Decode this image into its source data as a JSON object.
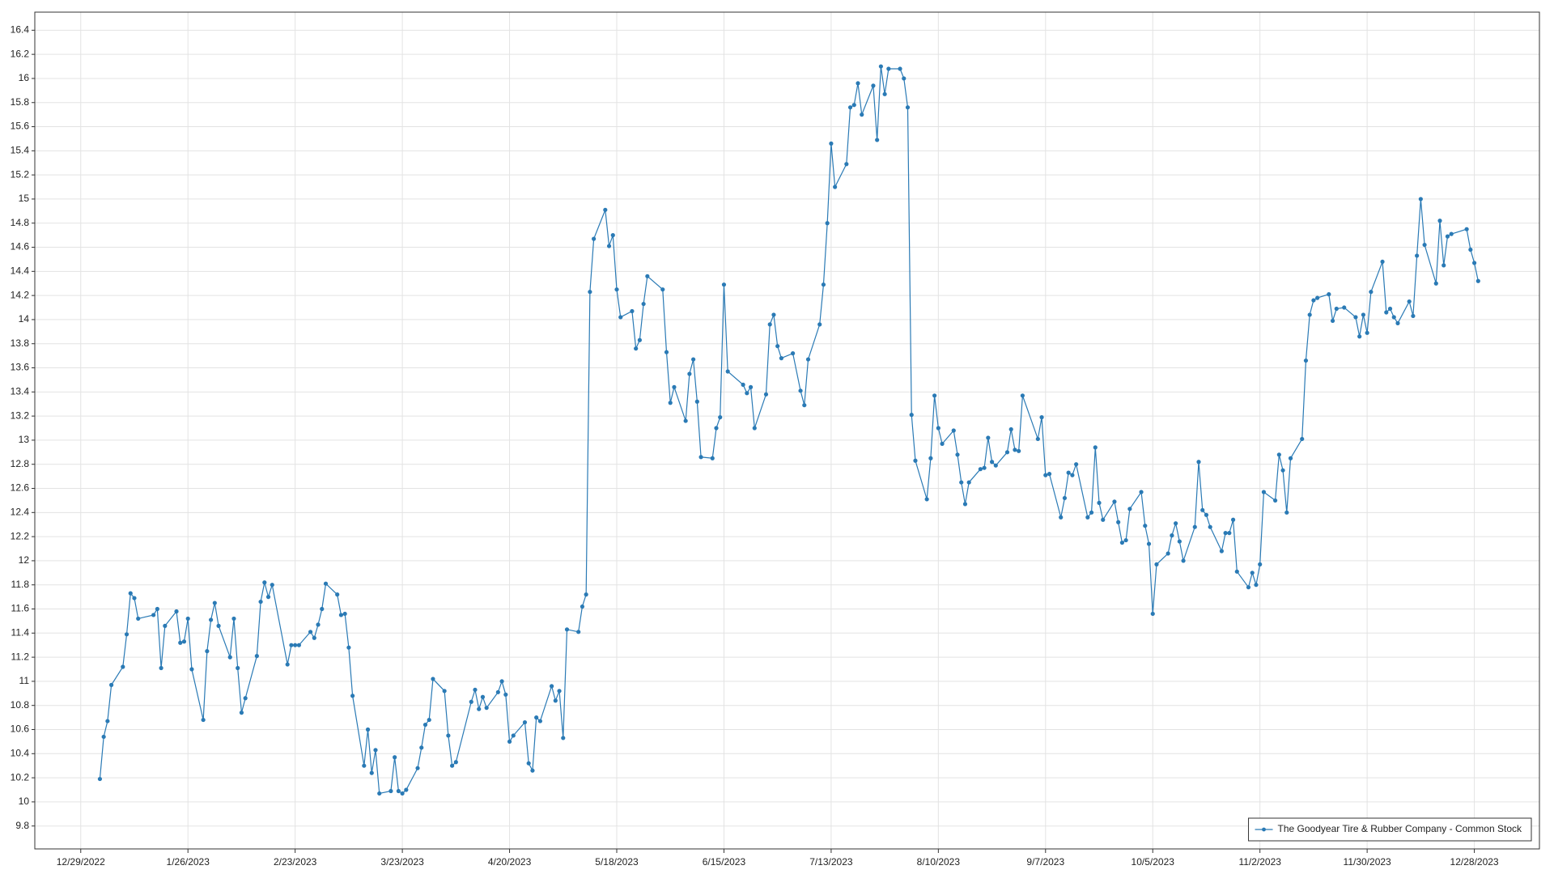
{
  "chart_data": {
    "type": "line",
    "x": [
      "1/3/2023",
      "1/4/2023",
      "1/5/2023",
      "1/6/2023",
      "1/9/2023",
      "1/10/2023",
      "1/11/2023",
      "1/12/2023",
      "1/13/2023",
      "1/17/2023",
      "1/18/2023",
      "1/19/2023",
      "1/20/2023",
      "1/23/2023",
      "1/24/2023",
      "1/25/2023",
      "1/26/2023",
      "1/27/2023",
      "1/30/2023",
      "1/31/2023",
      "2/1/2023",
      "2/2/2023",
      "2/3/2023",
      "2/6/2023",
      "2/7/2023",
      "2/8/2023",
      "2/9/2023",
      "2/10/2023",
      "2/13/2023",
      "2/14/2023",
      "2/15/2023",
      "2/16/2023",
      "2/17/2023",
      "2/21/2023",
      "2/22/2023",
      "2/23/2023",
      "2/24/2023",
      "2/27/2023",
      "2/28/2023",
      "3/1/2023",
      "3/2/2023",
      "3/3/2023",
      "3/6/2023",
      "3/7/2023",
      "3/8/2023",
      "3/9/2023",
      "3/10/2023",
      "3/13/2023",
      "3/14/2023",
      "3/15/2023",
      "3/16/2023",
      "3/17/2023",
      "3/20/2023",
      "3/21/2023",
      "3/22/2023",
      "3/23/2023",
      "3/24/2023",
      "3/27/2023",
      "3/28/2023",
      "3/29/2023",
      "3/30/2023",
      "3/31/2023",
      "4/3/2023",
      "4/4/2023",
      "4/5/2023",
      "4/6/2023",
      "4/10/2023",
      "4/11/2023",
      "4/12/2023",
      "4/13/2023",
      "4/14/2023",
      "4/17/2023",
      "4/18/2023",
      "4/19/2023",
      "4/20/2023",
      "4/21/2023",
      "4/24/2023",
      "4/25/2023",
      "4/26/2023",
      "4/27/2023",
      "4/28/2023",
      "5/1/2023",
      "5/2/2023",
      "5/3/2023",
      "5/4/2023",
      "5/5/2023",
      "5/8/2023",
      "5/9/2023",
      "5/10/2023",
      "5/11/2023",
      "5/12/2023",
      "5/15/2023",
      "5/16/2023",
      "5/17/2023",
      "5/18/2023",
      "5/19/2023",
      "5/22/2023",
      "5/23/2023",
      "5/24/2023",
      "5/25/2023",
      "5/26/2023",
      "5/30/2023",
      "5/31/2023",
      "6/1/2023",
      "6/2/2023",
      "6/5/2023",
      "6/6/2023",
      "6/7/2023",
      "6/8/2023",
      "6/9/2023",
      "6/12/2023",
      "6/13/2023",
      "6/14/2023",
      "6/15/2023",
      "6/16/2023",
      "6/20/2023",
      "6/21/2023",
      "6/22/2023",
      "6/23/2023",
      "6/26/2023",
      "6/27/2023",
      "6/28/2023",
      "6/29/2023",
      "6/30/2023",
      "7/3/2023",
      "7/5/2023",
      "7/6/2023",
      "7/7/2023",
      "7/10/2023",
      "7/11/2023",
      "7/12/2023",
      "7/13/2023",
      "7/14/2023",
      "7/17/2023",
      "7/18/2023",
      "7/19/2023",
      "7/20/2023",
      "7/21/2023",
      "7/24/2023",
      "7/25/2023",
      "7/26/2023",
      "7/27/2023",
      "7/28/2023",
      "7/31/2023",
      "8/1/2023",
      "8/2/2023",
      "8/3/2023",
      "8/4/2023",
      "8/7/2023",
      "8/8/2023",
      "8/9/2023",
      "8/10/2023",
      "8/11/2023",
      "8/14/2023",
      "8/15/2023",
      "8/16/2023",
      "8/17/2023",
      "8/18/2023",
      "8/21/2023",
      "8/22/2023",
      "8/23/2023",
      "8/24/2023",
      "8/25/2023",
      "8/28/2023",
      "8/29/2023",
      "8/30/2023",
      "8/31/2023",
      "9/1/2023",
      "9/5/2023",
      "9/6/2023",
      "9/7/2023",
      "9/8/2023",
      "9/11/2023",
      "9/12/2023",
      "9/13/2023",
      "9/14/2023",
      "9/15/2023",
      "9/18/2023",
      "9/19/2023",
      "9/20/2023",
      "9/21/2023",
      "9/22/2023",
      "9/25/2023",
      "9/26/2023",
      "9/27/2023",
      "9/28/2023",
      "9/29/2023",
      "10/2/2023",
      "10/3/2023",
      "10/4/2023",
      "10/5/2023",
      "10/6/2023",
      "10/9/2023",
      "10/10/2023",
      "10/11/2023",
      "10/12/2023",
      "10/13/2023",
      "10/16/2023",
      "10/17/2023",
      "10/18/2023",
      "10/19/2023",
      "10/20/2023",
      "10/23/2023",
      "10/24/2023",
      "10/25/2023",
      "10/26/2023",
      "10/27/2023",
      "10/30/2023",
      "10/31/2023",
      "11/1/2023",
      "11/2/2023",
      "11/3/2023",
      "11/6/2023",
      "11/7/2023",
      "11/8/2023",
      "11/9/2023",
      "11/10/2023",
      "11/13/2023",
      "11/14/2023",
      "11/15/2023",
      "11/16/2023",
      "11/17/2023",
      "11/20/2023",
      "11/21/2023",
      "11/22/2023",
      "11/24/2023",
      "11/27/2023",
      "11/28/2023",
      "11/29/2023",
      "11/30/2023",
      "12/1/2023",
      "12/4/2023",
      "12/5/2023",
      "12/6/2023",
      "12/7/2023",
      "12/8/2023",
      "12/11/2023",
      "12/12/2023",
      "12/13/2023",
      "12/14/2023",
      "12/15/2023",
      "12/18/2023",
      "12/19/2023",
      "12/20/2023",
      "12/21/2023",
      "12/22/2023",
      "12/26/2023",
      "12/27/2023",
      "12/28/2023",
      "12/29/2023"
    ],
    "series": [
      {
        "name": "The Goodyear Tire & Rubber Company - Common Stock",
        "color": "#2a7ab5",
        "values": [
          10.19,
          10.54,
          10.67,
          10.97,
          11.12,
          11.39,
          11.73,
          11.69,
          11.52,
          11.55,
          11.6,
          11.11,
          11.46,
          11.58,
          11.32,
          11.33,
          11.52,
          11.1,
          10.68,
          11.25,
          11.51,
          11.65,
          11.46,
          11.2,
          11.52,
          11.11,
          10.74,
          10.86,
          11.21,
          11.66,
          11.82,
          11.7,
          11.8,
          11.14,
          11.3,
          11.3,
          11.3,
          11.41,
          11.36,
          11.47,
          11.6,
          11.81,
          11.72,
          11.55,
          11.56,
          11.28,
          10.88,
          10.3,
          10.6,
          10.24,
          10.43,
          10.07,
          10.09,
          10.37,
          10.09,
          10.07,
          10.1,
          10.28,
          10.45,
          10.64,
          10.68,
          11.02,
          10.92,
          10.55,
          10.3,
          10.33,
          10.83,
          10.93,
          10.77,
          10.87,
          10.78,
          10.91,
          11.0,
          10.89,
          10.5,
          10.55,
          10.66,
          10.32,
          10.26,
          10.7,
          10.67,
          10.96,
          10.84,
          10.92,
          10.53,
          11.43,
          11.41,
          11.62,
          11.72,
          14.23,
          14.67,
          14.91,
          14.61,
          14.7,
          14.25,
          14.02,
          14.07,
          13.76,
          13.83,
          14.13,
          14.36,
          14.25,
          13.73,
          13.31,
          13.44,
          13.16,
          13.55,
          13.67,
          13.32,
          12.86,
          12.85,
          13.1,
          13.19,
          14.29,
          13.57,
          13.46,
          13.39,
          13.44,
          13.1,
          13.38,
          13.96,
          14.04,
          13.78,
          13.68,
          13.72,
          13.41,
          13.29,
          13.67,
          13.96,
          14.29,
          14.8,
          15.46,
          15.1,
          15.29,
          15.76,
          15.78,
          15.96,
          15.7,
          15.94,
          15.49,
          16.1,
          15.87,
          16.08,
          16.08,
          16.0,
          15.76,
          13.21,
          12.83,
          12.51,
          12.85,
          13.37,
          13.1,
          12.97,
          13.08,
          12.88,
          12.65,
          12.47,
          12.65,
          12.76,
          12.77,
          13.02,
          12.82,
          12.79,
          12.9,
          13.09,
          12.92,
          12.91,
          13.37,
          13.01,
          13.19,
          12.71,
          12.72,
          12.36,
          12.52,
          12.73,
          12.71,
          12.8,
          12.36,
          12.4,
          12.94,
          12.48,
          12.34,
          12.49,
          12.32,
          12.15,
          12.17,
          12.43,
          12.57,
          12.29,
          12.14,
          11.56,
          11.97,
          12.06,
          12.21,
          12.31,
          12.16,
          12.0,
          12.28,
          12.82,
          12.42,
          12.38,
          12.28,
          12.08,
          12.23,
          12.23,
          12.34,
          11.91,
          11.78,
          11.9,
          11.8,
          11.97,
          12.57,
          12.5,
          12.88,
          12.75,
          12.4,
          12.85,
          13.01,
          13.66,
          14.04,
          14.16,
          14.18,
          14.21,
          13.99,
          14.09,
          14.1,
          14.02,
          13.86,
          14.04,
          13.89,
          14.23,
          14.48,
          14.06,
          14.09,
          14.02,
          13.97,
          14.15,
          14.03,
          14.53,
          15.0,
          14.62,
          14.3,
          14.82,
          14.45,
          14.69,
          14.71,
          14.75,
          14.58,
          14.47,
          14.32
        ]
      }
    ],
    "xlim": [
      "12/17/2022",
      "1/14/2024"
    ],
    "xticks": [
      "12/29/2022",
      "1/26/2023",
      "2/23/2023",
      "3/23/2023",
      "4/20/2023",
      "5/18/2023",
      "6/15/2023",
      "7/13/2023",
      "8/10/2023",
      "9/7/2023",
      "10/5/2023",
      "11/2/2023",
      "11/30/2023",
      "12/28/2023"
    ],
    "ylim": [
      9.61,
      16.55
    ],
    "yticks": [
      9.8,
      10,
      10.2,
      10.4,
      10.6,
      10.8,
      11,
      11.2,
      11.4,
      11.6,
      11.8,
      12,
      12.2,
      12.4,
      12.6,
      12.8,
      13,
      13.2,
      13.4,
      13.6,
      13.8,
      14,
      14.2,
      14.4,
      14.6,
      14.8,
      15,
      15.2,
      15.4,
      15.6,
      15.8,
      16,
      16.2,
      16.4
    ],
    "grid": true,
    "legend": "bottom-right"
  }
}
